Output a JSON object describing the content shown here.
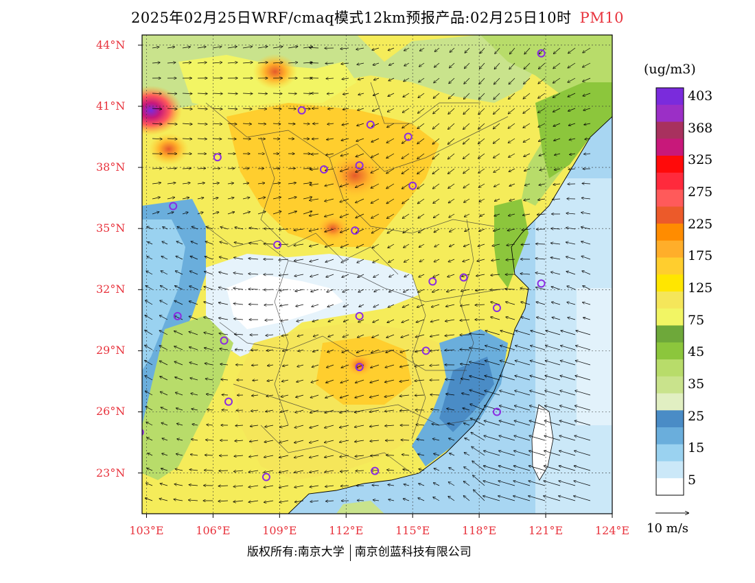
{
  "title": {
    "text": "2025年02月25日WRF/cmaq模式12km预报产品:02月25日10时",
    "pollutant": "PM10"
  },
  "unit": "(ug/m3)",
  "vector_scale": {
    "label": "10 m/s"
  },
  "footer": {
    "left": "版权所有:南京大学",
    "right": "南京创蓝科技有限公司"
  },
  "axes": {
    "lat_labels": [
      "44°N",
      "41°N",
      "38°N",
      "35°N",
      "32°N",
      "29°N",
      "26°N",
      "23°N"
    ],
    "lat_values": [
      44,
      41,
      38,
      35,
      32,
      29,
      26,
      23
    ],
    "lon_labels": [
      "103°E",
      "106°E",
      "109°E",
      "112°E",
      "115°E",
      "118°E",
      "121°E",
      "124°E"
    ],
    "lon_values": [
      103,
      106,
      109,
      112,
      115,
      118,
      121,
      124
    ],
    "lon_range": [
      102.8,
      124
    ],
    "lat_range": [
      21,
      44.5
    ]
  },
  "colorbar": {
    "labels": [
      "403",
      "368",
      "325",
      "275",
      "225",
      "175",
      "125",
      "75",
      "45",
      "35",
      "25",
      "15",
      "5"
    ],
    "colors": [
      "#7a2bdc",
      "#9b2fc6",
      "#a8315e",
      "#c8187a",
      "#ff0a0a",
      "#ff2a3c",
      "#ff5a5a",
      "#ec5a2a",
      "#ff8c00",
      "#ffae2a",
      "#ffce2e",
      "#ffe600",
      "#f5e65a",
      "#f2f564",
      "#6ea83a",
      "#8cc63c",
      "#b8dc6a",
      "#c9e38c",
      "#e1efc2",
      "#4a8cc6",
      "#6aaedc",
      "#9ad2f0",
      "#cbe8f8",
      "#ffffff"
    ]
  },
  "colors": {
    "ocean_light": "#a8d6f2",
    "land_base": "#f5ec5a",
    "accent_red": "#e8323c",
    "city_marker": "#8a2be2"
  },
  "cities": [
    {
      "lon": 120.8,
      "lat": 43.6
    },
    {
      "lon": 110.0,
      "lat": 40.8
    },
    {
      "lon": 113.1,
      "lat": 40.1
    },
    {
      "lon": 114.8,
      "lat": 39.5
    },
    {
      "lon": 106.2,
      "lat": 38.5
    },
    {
      "lon": 111.0,
      "lat": 37.9
    },
    {
      "lon": 112.6,
      "lat": 38.1
    },
    {
      "lon": 115.0,
      "lat": 37.1
    },
    {
      "lon": 104.2,
      "lat": 36.1
    },
    {
      "lon": 112.4,
      "lat": 34.9
    },
    {
      "lon": 108.9,
      "lat": 34.2
    },
    {
      "lon": 115.9,
      "lat": 32.4
    },
    {
      "lon": 117.3,
      "lat": 32.6
    },
    {
      "lon": 120.8,
      "lat": 32.3
    },
    {
      "lon": 104.4,
      "lat": 30.7
    },
    {
      "lon": 112.6,
      "lat": 30.7
    },
    {
      "lon": 118.8,
      "lat": 31.1
    },
    {
      "lon": 106.5,
      "lat": 29.5
    },
    {
      "lon": 115.6,
      "lat": 29.0
    },
    {
      "lon": 112.6,
      "lat": 28.2
    },
    {
      "lon": 106.7,
      "lat": 26.5
    },
    {
      "lon": 118.8,
      "lat": 26.0
    },
    {
      "lon": 102.7,
      "lat": 25.0
    },
    {
      "lon": 108.4,
      "lat": 22.8
    },
    {
      "lon": 113.3,
      "lat": 23.1
    }
  ],
  "features": {
    "pollution_hotspots": [
      {
        "lon": 112.4,
        "lat": 37.6,
        "r": 1.4,
        "level": "high"
      },
      {
        "lon": 111.4,
        "lat": 35.0,
        "r": 0.8,
        "level": "high"
      },
      {
        "lon": 112.6,
        "lat": 28.3,
        "r": 0.7,
        "level": "high"
      },
      {
        "lon": 104.0,
        "lat": 38.9,
        "r": 0.9,
        "level": "high"
      },
      {
        "lon": 103.2,
        "lat": 40.8,
        "r": 1.4,
        "level": "very-high"
      },
      {
        "lon": 108.8,
        "lat": 42.7,
        "r": 1.0,
        "level": "high"
      }
    ]
  }
}
